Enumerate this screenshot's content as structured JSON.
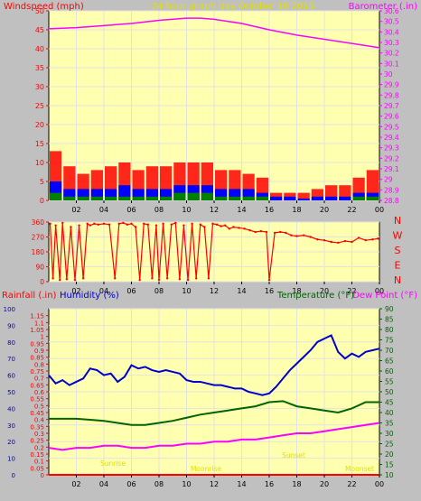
{
  "colors": {
    "background": "#c0c0c0",
    "plot": "#ffffb0",
    "grid": "#e2e2e2",
    "wind": "#ff0000",
    "wind_avg": "#0000ff",
    "wind_low": "#008000",
    "barometer": "#ff00ff",
    "direction": "#ff0000",
    "rain": "#ff0000",
    "humidity": "#0000cc",
    "temperature": "#006400",
    "dewpoint": "#ff00ff",
    "title": "#e0e000"
  },
  "chart_data": [
    {
      "type": "line",
      "title": "24 hour graph day   October 19 2015",
      "ylabel": "Windspeed (mph)",
      "y2label": "Barometer (.in)",
      "x_ticks": [
        "02",
        "04",
        "06",
        "08",
        "10",
        "12",
        "14",
        "16",
        "18",
        "20",
        "22",
        "00"
      ],
      "ylim": [
        0,
        50
      ],
      "y_ticks": [
        "0",
        "5",
        "10",
        "15",
        "20",
        "25",
        "30",
        "35",
        "40",
        "45",
        "50"
      ],
      "y2lim": [
        28.8,
        30.6
      ],
      "y2_ticks": [
        "28.8",
        "28.9",
        "29",
        "29.1",
        "29.2",
        "29.3",
        "29.4",
        "29.5",
        "29.6",
        "29.7",
        "29.8",
        "29.9",
        "30",
        "30.1",
        "30.2",
        "30.3",
        "30.4",
        "30.5",
        "30.6"
      ],
      "series": [
        {
          "name": "Windspeed (mph)",
          "kind": "gust",
          "x": [
            0.5,
            1.5,
            2.5,
            3.5,
            4.5,
            5.5,
            6.5,
            7.5,
            8.5,
            9.5,
            10.5,
            11.5,
            12.5,
            13.5,
            14.5,
            15.5,
            16.5,
            17.5,
            18.5,
            19.5,
            20.5,
            21.5,
            22.5,
            23.5
          ],
          "values": [
            13,
            9,
            7,
            8,
            9,
            10,
            8,
            9,
            9,
            10,
            10,
            10,
            8,
            8,
            7,
            6,
            2,
            2,
            2,
            3,
            4,
            4,
            6,
            8
          ]
        },
        {
          "name": "",
          "kind": "average",
          "x": [
            0.5,
            1.5,
            2.5,
            3.5,
            4.5,
            5.5,
            6.5,
            7.5,
            8.5,
            9.5,
            10.5,
            11.5,
            12.5,
            13.5,
            14.5,
            15.5,
            16.5,
            17.5,
            18.5,
            19.5,
            20.5,
            21.5,
            22.5,
            23.5
          ],
          "values": [
            5,
            3,
            3,
            3,
            3,
            4,
            3,
            3,
            3,
            4,
            4,
            4,
            3,
            3,
            3,
            2,
            1,
            1,
            0.5,
            1,
            1,
            1,
            2,
            2
          ]
        },
        {
          "name": "",
          "kind": "low",
          "x": [
            0.5,
            1.5,
            2.5,
            3.5,
            4.5,
            5.5,
            6.5,
            7.5,
            8.5,
            9.5,
            10.5,
            11.5,
            12.5,
            13.5,
            14.5,
            15.5,
            16.5,
            17.5,
            18.5,
            19.5,
            20.5,
            21.5,
            22.5,
            23.5
          ],
          "values": [
            2,
            1,
            1,
            1,
            1,
            1,
            1,
            1,
            1,
            2,
            2,
            2,
            1,
            1,
            1,
            1,
            0,
            0,
            0,
            0,
            0,
            0,
            1,
            1
          ]
        },
        {
          "name": "Barometer (.in)",
          "axis": "right",
          "x": [
            0,
            2,
            4,
            6,
            8,
            10,
            11,
            12,
            14,
            16,
            18,
            20,
            22,
            24
          ],
          "values": [
            30.43,
            30.44,
            30.46,
            30.48,
            30.51,
            30.53,
            30.53,
            30.52,
            30.48,
            30.42,
            30.37,
            30.33,
            30.29,
            30.25
          ]
        }
      ]
    },
    {
      "type": "scatter",
      "ylabel_right": [
        "N",
        "W",
        "S",
        "E",
        "N"
      ],
      "ylim": [
        0,
        360
      ],
      "y_ticks": [
        "0",
        "90",
        "180",
        "270",
        "360"
      ],
      "x_ticks": [
        "02",
        "04",
        "06",
        "08",
        "10",
        "12",
        "14",
        "16",
        "18",
        "20",
        "22",
        "00"
      ],
      "series": [
        {
          "name": "",
          "x": [
            0.1,
            0.3,
            0.5,
            0.8,
            1.0,
            1.3,
            1.6,
            1.9,
            2.2,
            2.5,
            2.8,
            3.0,
            3.3,
            3.6,
            4.0,
            4.4,
            4.8,
            5.1,
            5.4,
            5.7,
            6.0,
            6.3,
            6.6,
            6.9,
            7.2,
            7.5,
            7.8,
            8.0,
            8.3,
            8.6,
            8.9,
            9.2,
            9.5,
            9.8,
            10.1,
            10.4,
            10.7,
            11.0,
            11.3,
            11.6,
            11.9,
            12.2,
            12.5,
            12.8,
            13.1,
            13.4,
            13.8,
            14.2,
            14.6,
            15.0,
            15.4,
            15.8,
            16.0,
            16.4,
            16.8,
            17.2,
            17.6,
            18.0,
            18.5,
            19.0,
            19.5,
            20.0,
            20.5,
            21.0,
            21.5,
            22.0,
            22.5,
            23.0,
            23.5,
            23.9
          ],
          "values": [
            350,
            20,
            340,
            10,
            355,
            15,
            330,
            10,
            340,
            20,
            350,
            340,
            350,
            345,
            350,
            345,
            20,
            350,
            355,
            345,
            350,
            330,
            10,
            350,
            345,
            20,
            340,
            10,
            350,
            20,
            345,
            355,
            15,
            340,
            10,
            350,
            20,
            345,
            330,
            20,
            350,
            345,
            335,
            340,
            320,
            330,
            325,
            320,
            310,
            300,
            305,
            300,
            10,
            295,
            300,
            295,
            280,
            275,
            280,
            270,
            255,
            250,
            240,
            235,
            245,
            240,
            265,
            250,
            255,
            260
          ]
        }
      ]
    },
    {
      "type": "line",
      "ylabel": "Rainfall (.in)",
      "ylabel2": "Humidity (%)",
      "y2label": "Temperature (°F)",
      "y2label2": "Dew Point (°F)",
      "ylim": [
        0,
        1.2
      ],
      "y_ticks": [
        "0",
        "0.05",
        "0.1",
        "0.15",
        "0.2",
        "0.25",
        "0.3",
        "0.35",
        "0.4",
        "0.45",
        "0.5",
        "0.55",
        "0.6",
        "0.65",
        "0.7",
        "0.75",
        "0.8",
        "0.85",
        "0.9",
        "0.95",
        "1",
        "1.05",
        "1.1",
        "1.15"
      ],
      "humidity_ticks": [
        "0",
        "10",
        "20",
        "30",
        "40",
        "50",
        "60",
        "70",
        "80",
        "90",
        "100"
      ],
      "y2lim": [
        10,
        90
      ],
      "y2_ticks": [
        "10",
        "15",
        "20",
        "25",
        "30",
        "35",
        "40",
        "45",
        "50",
        "55",
        "60",
        "65",
        "70",
        "75",
        "80",
        "85",
        "90"
      ],
      "x_ticks": [
        "02",
        "04",
        "06",
        "08",
        "10",
        "12",
        "14",
        "16",
        "18",
        "20",
        "22",
        "00"
      ],
      "annotations": [
        "Sunrise",
        "Sunset",
        "Moonrise",
        "Moonset"
      ],
      "series": [
        {
          "name": "Rainfall (.in)",
          "axis": "rain",
          "x": [
            0,
            24
          ],
          "values": [
            0,
            0
          ]
        },
        {
          "name": "Humidity (%)",
          "axis": "humidity",
          "x": [
            0,
            0.5,
            1,
            1.5,
            2,
            2.5,
            3,
            3.5,
            4,
            4.5,
            5,
            5.5,
            6,
            6.5,
            7,
            7.5,
            8,
            8.5,
            9,
            9.5,
            10,
            10.5,
            11,
            11.5,
            12,
            12.5,
            13,
            13.5,
            14,
            14.5,
            15,
            15.5,
            16,
            16.5,
            17,
            17.5,
            18,
            18.5,
            19,
            19.5,
            20,
            20.5,
            21,
            21.5,
            22,
            22.5,
            23,
            23.5,
            24
          ],
          "values": [
            60,
            55,
            57,
            54,
            56,
            58,
            64,
            63,
            60,
            61,
            56,
            59,
            66,
            64,
            65,
            63,
            62,
            63,
            62,
            61,
            57,
            56,
            56,
            55,
            54,
            54,
            53,
            52,
            52,
            50,
            49,
            48,
            49,
            53,
            58,
            63,
            67,
            71,
            75,
            80,
            82,
            84,
            74,
            70,
            73,
            71,
            74,
            75,
            76
          ]
        },
        {
          "name": "Temperature (°F)",
          "axis": "right",
          "x": [
            0,
            1,
            2,
            3,
            4,
            5,
            6,
            7,
            8,
            9,
            10,
            11,
            12,
            13,
            14,
            15,
            16,
            17,
            18,
            19,
            20,
            21,
            22,
            23,
            24
          ],
          "values": [
            37,
            37,
            37,
            36.5,
            36,
            35,
            34,
            34,
            35,
            36,
            37.5,
            39,
            40,
            41,
            42,
            43,
            45,
            45.5,
            43,
            42,
            41,
            40,
            42,
            45,
            45
          ]
        },
        {
          "name": "Dew Point (°F)",
          "axis": "right",
          "x": [
            0,
            1,
            2,
            3,
            4,
            5,
            6,
            7,
            8,
            9,
            10,
            11,
            12,
            13,
            14,
            15,
            16,
            17,
            18,
            19,
            20,
            21,
            22,
            23,
            24
          ],
          "values": [
            23,
            22,
            23,
            23,
            24,
            24,
            23,
            23,
            24,
            24,
            25,
            25,
            26,
            26,
            27,
            27,
            28,
            29,
            30,
            30,
            31,
            32,
            33,
            34,
            35
          ]
        }
      ]
    }
  ]
}
